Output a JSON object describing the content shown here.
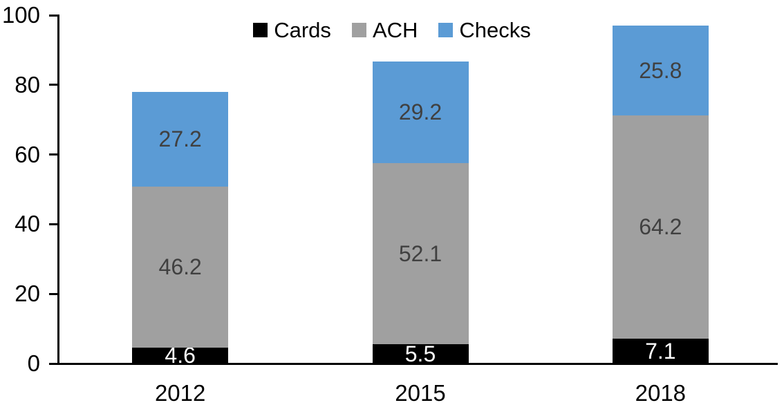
{
  "chart_data": {
    "type": "bar",
    "stacked": true,
    "title": "",
    "xlabel": "",
    "ylabel": "",
    "categories": [
      "2012",
      "2015",
      "2018"
    ],
    "series": [
      {
        "name": "Cards",
        "color": "#000000",
        "label_color": "#ffffff",
        "values": [
          4.6,
          5.5,
          7.1
        ]
      },
      {
        "name": "ACH",
        "color": "#a0a0a0",
        "label_color": "#404040",
        "values": [
          46.2,
          52.1,
          64.2
        ]
      },
      {
        "name": "Checks",
        "color": "#5b9bd5",
        "label_color": "#404040",
        "values": [
          27.2,
          29.2,
          25.8
        ]
      }
    ],
    "ylim": [
      0,
      100
    ],
    "yticks": [
      "0",
      "20",
      "40",
      "60",
      "80",
      "100"
    ],
    "grid": false,
    "legend_position": "top-center",
    "axis_color": "#000000",
    "background_color": "#ffffff"
  }
}
